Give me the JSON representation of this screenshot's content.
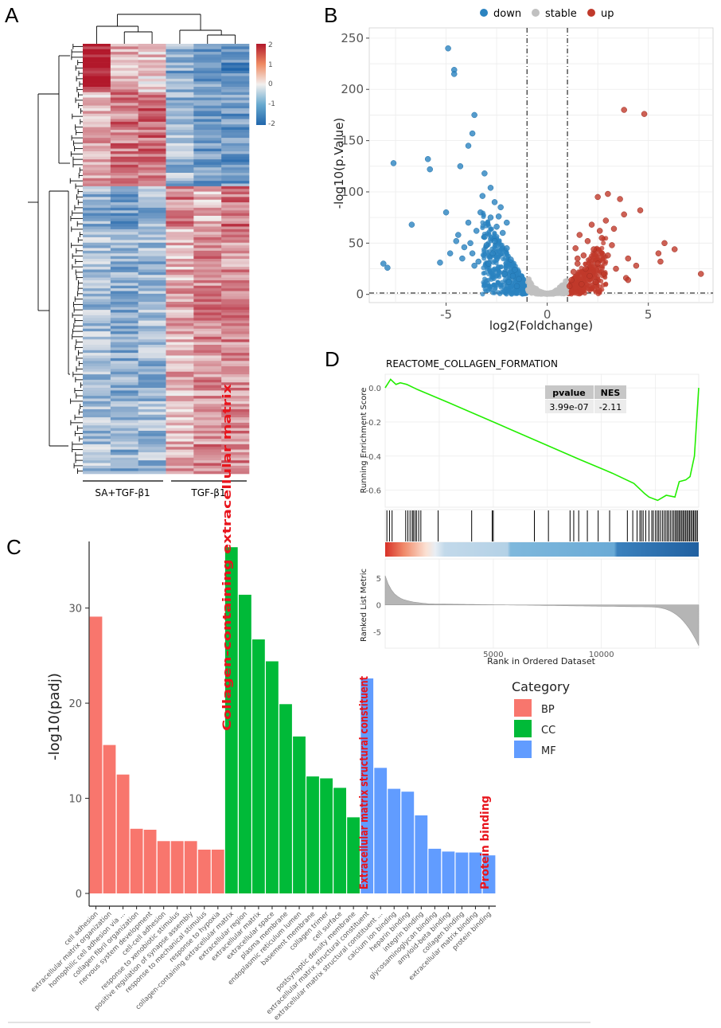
{
  "panels": {
    "a": "A",
    "b": "B",
    "c": "C",
    "d": "D"
  },
  "colors": {
    "heat_high": "#b2182b",
    "heat_mid": "#f2efee",
    "heat_low": "#2166ac",
    "down": "#2b83c0",
    "stable": "#c0c0c0",
    "up": "#c0392b",
    "bp": "#f8766d",
    "cc": "#00ba38",
    "mf": "#619cff",
    "gsea_curve": "#22ee00",
    "highlight_text": "#e8141c"
  },
  "chart_data": [
    {
      "id": "heatmap",
      "type": "heatmap",
      "title": "",
      "group_labels": [
        "SA+TGF-β1",
        "TGF-β1"
      ],
      "legend_ticks": [
        "2",
        "1",
        "0",
        "-1",
        "-2"
      ],
      "legend_range": [
        -2,
        2
      ],
      "n_columns": 6
    },
    {
      "id": "volcano",
      "type": "scatter",
      "title": "",
      "legend": [
        "down",
        "stable",
        "up"
      ],
      "xlabel": "log2(Foldchange)",
      "ylabel": "-log10(p.Value)",
      "xlim": [
        -8.8,
        8.2
      ],
      "ylim": [
        -8,
        260
      ],
      "xticks": [
        "-5",
        "0",
        "5"
      ],
      "xtick_values": [
        -5,
        0,
        5
      ],
      "yticks": [
        "0",
        "50",
        "100",
        "150",
        "200",
        "250"
      ],
      "ytick_values": [
        0,
        50,
        100,
        150,
        200,
        250
      ],
      "thresholds": {
        "x": [
          -1,
          1
        ],
        "y": 1.3
      },
      "down_points": [
        [
          -4.9,
          240
        ],
        [
          -4.6,
          219
        ],
        [
          -4.6,
          215
        ],
        [
          -7.6,
          128
        ],
        [
          -5.9,
          132
        ],
        [
          -5.8,
          122
        ],
        [
          -4.3,
          125
        ],
        [
          -3.6,
          175
        ],
        [
          -3.7,
          157
        ],
        [
          -3.9,
          145
        ],
        [
          -6.7,
          68
        ],
        [
          -8.1,
          30
        ],
        [
          -7.9,
          26
        ],
        [
          -5.3,
          31
        ],
        [
          -5.0,
          80
        ],
        [
          -3.1,
          118
        ],
        [
          -2.8,
          104
        ],
        [
          -3.2,
          96
        ],
        [
          -2.6,
          90
        ],
        [
          -4.4,
          58
        ],
        [
          -4.8,
          40
        ],
        [
          -3.9,
          70
        ],
        [
          -3.5,
          62
        ],
        [
          -3.0,
          48
        ],
        [
          -2.4,
          76
        ],
        [
          -2.2,
          60
        ],
        [
          -2.0,
          45
        ],
        [
          -1.8,
          34
        ],
        [
          -1.6,
          24
        ],
        [
          -1.4,
          15
        ],
        [
          -2.9,
          30
        ],
        [
          -3.7,
          40
        ],
        [
          -4.1,
          46
        ],
        [
          -2.6,
          52
        ],
        [
          -3.3,
          80
        ],
        [
          -2.3,
          85
        ],
        [
          -4.2,
          35
        ],
        [
          -3.6,
          28
        ],
        [
          -2.1,
          20
        ],
        [
          -1.9,
          12
        ],
        [
          -1.5,
          8
        ],
        [
          -2.7,
          40
        ],
        [
          -3.1,
          56
        ],
        [
          -4.5,
          52
        ],
        [
          -2.5,
          66
        ],
        [
          -3.8,
          50
        ],
        [
          -2.0,
          70
        ],
        [
          -2.8,
          75
        ],
        [
          -3.4,
          32
        ],
        [
          -1.7,
          18
        ]
      ],
      "stable_points": [
        [
          -0.9,
          15
        ],
        [
          -0.8,
          10
        ],
        [
          -0.7,
          6
        ],
        [
          -0.6,
          4
        ],
        [
          -0.5,
          3
        ],
        [
          -0.4,
          2
        ],
        [
          -0.3,
          1
        ],
        [
          -0.2,
          0.6
        ],
        [
          -0.1,
          0.3
        ],
        [
          0,
          0.1
        ],
        [
          0.1,
          0.3
        ],
        [
          0.2,
          0.6
        ],
        [
          0.3,
          1
        ],
        [
          0.4,
          2
        ],
        [
          0.5,
          3
        ],
        [
          0.6,
          4
        ],
        [
          0.7,
          6
        ],
        [
          0.8,
          9
        ],
        [
          0.9,
          13
        ],
        [
          -0.85,
          2
        ],
        [
          0.85,
          2
        ],
        [
          -0.6,
          1
        ],
        [
          0.6,
          1
        ],
        [
          0.3,
          0.2
        ],
        [
          -0.3,
          0.2
        ]
      ],
      "up_points": [
        [
          3.8,
          180
        ],
        [
          4.8,
          176
        ],
        [
          3.0,
          98
        ],
        [
          2.5,
          95
        ],
        [
          3.6,
          93
        ],
        [
          4.6,
          82
        ],
        [
          3.8,
          78
        ],
        [
          2.9,
          72
        ],
        [
          2.2,
          68
        ],
        [
          3.3,
          64
        ],
        [
          5.8,
          50
        ],
        [
          6.3,
          44
        ],
        [
          5.5,
          40
        ],
        [
          4.0,
          35
        ],
        [
          3.0,
          38
        ],
        [
          2.5,
          30
        ],
        [
          7.6,
          20
        ],
        [
          3.9,
          16
        ],
        [
          4.0,
          14
        ],
        [
          1.6,
          58
        ],
        [
          1.4,
          45
        ],
        [
          1.8,
          38
        ],
        [
          1.5,
          30
        ],
        [
          1.3,
          22
        ],
        [
          1.2,
          14
        ],
        [
          1.1,
          8
        ],
        [
          2.0,
          52
        ],
        [
          2.3,
          44
        ],
        [
          2.7,
          55
        ],
        [
          1.9,
          25
        ],
        [
          2.1,
          18
        ],
        [
          1.7,
          10
        ],
        [
          3.4,
          25
        ],
        [
          2.8,
          20
        ],
        [
          2.4,
          12
        ],
        [
          4.4,
          28
        ],
        [
          5.6,
          32
        ],
        [
          3.2,
          48
        ],
        [
          2.6,
          62
        ],
        [
          1.5,
          35
        ]
      ]
    },
    {
      "id": "gsea",
      "type": "line",
      "title": "REACTOME_COLLAGEN_FORMATION",
      "ylabel": "Running Enrichment Score",
      "xlabel": "Rank in Ordered Dataset",
      "table_headers": [
        "pvalue",
        "NES"
      ],
      "table_values": [
        "3.99e-07",
        "-2.11"
      ],
      "xlim": [
        0,
        14500
      ],
      "ylim": [
        -0.7,
        0.08
      ],
      "yticks": [
        "0.0",
        "-0.2",
        "-0.4",
        "-0.6"
      ],
      "ytick_values": [
        0.0,
        -0.2,
        -0.4,
        -0.6
      ],
      "xticks": [
        "5000",
        "10000"
      ],
      "xtick_values": [
        5000,
        10000
      ],
      "curve": [
        [
          0,
          0
        ],
        [
          250,
          0.05
        ],
        [
          500,
          0.02
        ],
        [
          700,
          0.03
        ],
        [
          1000,
          0.02
        ],
        [
          1500,
          -0.01
        ],
        [
          3000,
          -0.09
        ],
        [
          5000,
          -0.2
        ],
        [
          7000,
          -0.31
        ],
        [
          9000,
          -0.42
        ],
        [
          10500,
          -0.5
        ],
        [
          11500,
          -0.56
        ],
        [
          12000,
          -0.62
        ],
        [
          12200,
          -0.64
        ],
        [
          12600,
          -0.66
        ],
        [
          13000,
          -0.63
        ],
        [
          13400,
          -0.64
        ],
        [
          13600,
          -0.55
        ],
        [
          13900,
          -0.54
        ],
        [
          14100,
          -0.52
        ],
        [
          14300,
          -0.4
        ],
        [
          14500,
          0.0
        ]
      ],
      "hit_ranks": [
        80,
        200,
        320,
        950,
        1050,
        1150,
        1250,
        1300,
        1380,
        1450,
        1550,
        1650,
        2450,
        4000,
        4950,
        5000,
        6900,
        7550,
        8550,
        8720,
        8950,
        9350,
        9850,
        10380,
        11200,
        11450,
        11650,
        11780,
        11850,
        11930,
        12050,
        12200,
        12330,
        12400,
        12500,
        12580,
        12650,
        12730,
        12820,
        12900,
        12980,
        13050,
        13120,
        13200,
        13280,
        13350,
        13420,
        13480,
        13540,
        13600,
        13660,
        13720,
        13780,
        13840,
        13900,
        13960,
        14020,
        14080,
        14140,
        14200,
        14260,
        14320,
        14380,
        14440
      ],
      "metric_label": "Ranked List Metric",
      "metric_yticks": [
        "5",
        "0",
        "-5"
      ],
      "metric_ytick_values": [
        5,
        0,
        -5
      ],
      "metric_ylim": [
        -8,
        8.5
      ]
    },
    {
      "id": "go_bar",
      "type": "bar",
      "title": "",
      "ylabel": "-log10(padj)",
      "ylim": [
        0,
        37
      ],
      "yticks": [
        "0",
        "10",
        "20",
        "30"
      ],
      "ytick_values": [
        0,
        10,
        20,
        30
      ],
      "legend_title": "Category",
      "legend": [
        "BP",
        "CC",
        "MF"
      ],
      "categories": [
        "cell adhesion",
        "extracellular matrix organization",
        "homophilic cell adhesion via ...",
        "collagen fibril organization",
        "nervous system development",
        "cell-cell adhesion",
        "response to xenobiotic stimulus",
        "positive regulation of synapse assembly",
        "response to mechanical stimulus",
        "response to hypoxia",
        "collagen-containing extracellular matrix",
        "extracellular region",
        "extracellular matrix",
        "extracellular space",
        "plasma membrane",
        "endoplasmic reticulum lumen",
        "basement membrane",
        "collagen trimer",
        "cell surface",
        "postsynaptic density membrane",
        "extracellular matrix structural constituent",
        "extracellular matrix structural constituent ...",
        "calcium ion binding",
        "heparin binding",
        "integrin binding",
        "glycosaminoglycan binding",
        "amyloid-beta binding",
        "collagen binding",
        "extracellular matrix binding",
        "protein binding"
      ],
      "values": [
        29.1,
        15.6,
        12.5,
        6.8,
        6.7,
        5.5,
        5.5,
        5.5,
        4.6,
        4.6,
        36.4,
        31.4,
        26.7,
        24.4,
        19.9,
        16.5,
        12.3,
        12.1,
        11.1,
        8.0,
        22.6,
        13.2,
        11.0,
        10.7,
        8.2,
        4.7,
        4.4,
        4.3,
        4.3,
        4.0
      ],
      "groups": [
        "BP",
        "BP",
        "BP",
        "BP",
        "BP",
        "BP",
        "BP",
        "BP",
        "BP",
        "BP",
        "CC",
        "CC",
        "CC",
        "CC",
        "CC",
        "CC",
        "CC",
        "CC",
        "CC",
        "CC",
        "MF",
        "MF",
        "MF",
        "MF",
        "MF",
        "MF",
        "MF",
        "MF",
        "MF",
        "MF"
      ],
      "annotations": [
        "Collagen-containing extracellular matrix",
        "Extracellular matrix structural constituent",
        "Protein binding"
      ]
    }
  ]
}
